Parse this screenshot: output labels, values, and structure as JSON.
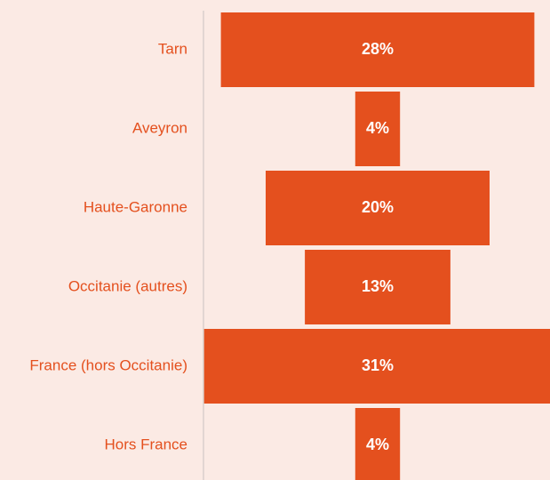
{
  "chart_data": {
    "type": "funnel",
    "categories": [
      "Tarn",
      "Aveyron",
      "Haute-Garonne",
      "Occitanie (autres)",
      "France (hors Occitanie)",
      "Hors France"
    ],
    "values": [
      28,
      4,
      20,
      13,
      31,
      4
    ],
    "value_labels": [
      "28%",
      "4%",
      "20%",
      "13%",
      "31%",
      "4%"
    ],
    "color": "#e4501e"
  }
}
